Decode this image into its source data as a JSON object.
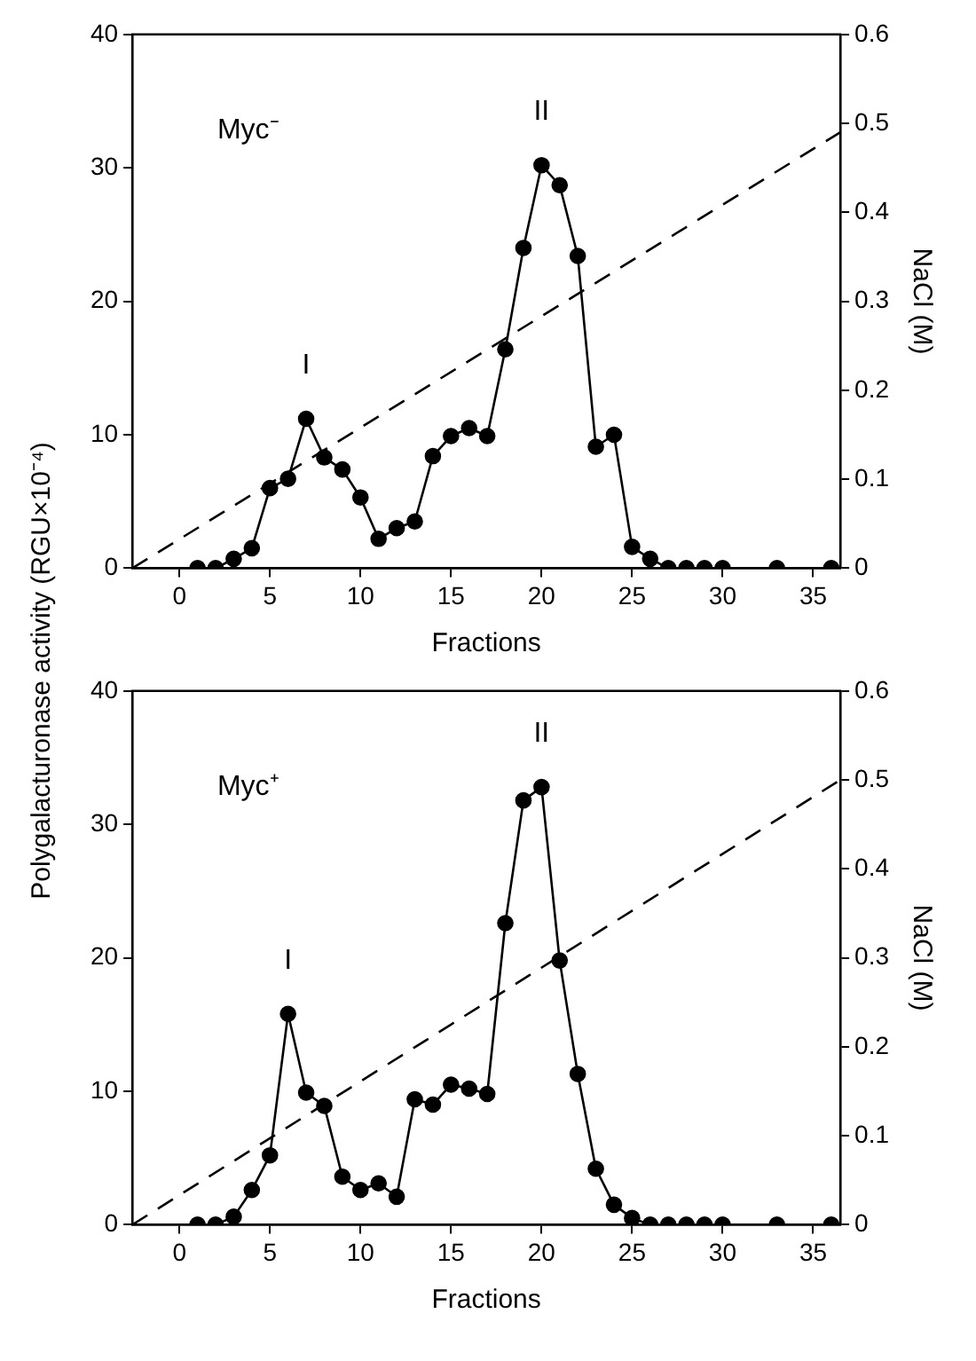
{
  "chart_data": [
    {
      "type": "line",
      "xlabel": "Fractions",
      "ylabel": "Polygalacturonase activity (RGU×10⁻⁴)",
      "y2label": "NaCl (M)",
      "xlim": [
        -2.6,
        36.5
      ],
      "xticks": [
        0,
        5,
        10,
        15,
        20,
        25,
        30,
        35
      ],
      "ylim": [
        0,
        40
      ],
      "yticks": [
        0,
        10,
        20,
        30,
        40
      ],
      "y2lim": [
        0,
        0.6
      ],
      "y2ticks": [
        0,
        0.1,
        0.2,
        0.3,
        0.4,
        0.5,
        0.6
      ],
      "grid": false,
      "legend": false,
      "annotations": [
        "Myc⁻",
        {
          "text": "I",
          "x": 7,
          "y": 11.2
        },
        {
          "text": "II",
          "x": 20,
          "y": 30.2
        }
      ],
      "series": [
        {
          "color": "#000000",
          "marker": "circle",
          "line_style": "solid",
          "x": [
            1,
            2,
            3,
            4,
            5,
            6,
            7,
            8,
            9,
            10,
            11,
            12,
            13,
            14,
            15,
            16,
            17,
            18,
            19,
            20,
            21,
            22,
            23,
            24,
            25,
            26,
            27,
            28,
            29,
            30,
            33,
            36
          ],
          "values": [
            0,
            0,
            0.7,
            1.5,
            6,
            6.7,
            11.2,
            8.3,
            7.4,
            5.3,
            2.2,
            3,
            3.5,
            8.4,
            9.9,
            10.5,
            9.9,
            16.4,
            24,
            30.2,
            28.7,
            23.4,
            9.1,
            10,
            1.6,
            0.7,
            0,
            0,
            0,
            0,
            0,
            0
          ]
        },
        {
          "color": "#000000",
          "marker": "none",
          "line_style": "dashed",
          "axis": "y2",
          "x": [
            -2.6,
            36.5
          ],
          "values": [
            0,
            0.49
          ]
        }
      ]
    },
    {
      "type": "line",
      "xlabel": "Fractions",
      "y2label": "NaCl (M)",
      "xlim": [
        -2.6,
        36.5
      ],
      "xticks": [
        0,
        5,
        10,
        15,
        20,
        25,
        30,
        35
      ],
      "ylim": [
        0,
        40
      ],
      "yticks": [
        0,
        10,
        20,
        30,
        40
      ],
      "y2lim": [
        0,
        0.6
      ],
      "y2ticks": [
        0,
        0.1,
        0.2,
        0.3,
        0.4,
        0.5,
        0.6
      ],
      "grid": false,
      "legend": false,
      "annotations": [
        "Myc⁺",
        {
          "text": "I",
          "x": 6,
          "y": 15.8
        },
        {
          "text": "II",
          "x": 20,
          "y": 32.8
        }
      ],
      "series": [
        {
          "color": "#000000",
          "marker": "circle",
          "line_style": "solid",
          "x": [
            1,
            2,
            3,
            4,
            5,
            6,
            7,
            8,
            9,
            10,
            11,
            12,
            13,
            14,
            15,
            16,
            17,
            18,
            19,
            20,
            21,
            22,
            23,
            24,
            25,
            26,
            27,
            28,
            29,
            30,
            33,
            36
          ],
          "values": [
            0,
            0,
            0.6,
            2.6,
            5.2,
            15.8,
            9.9,
            8.9,
            3.6,
            2.6,
            3.1,
            2.1,
            9.4,
            9,
            10.5,
            10.2,
            9.8,
            22.6,
            31.8,
            32.8,
            19.8,
            11.3,
            4.2,
            1.5,
            0.5,
            0,
            0,
            0,
            0,
            0,
            0,
            0
          ]
        },
        {
          "color": "#000000",
          "marker": "none",
          "line_style": "dashed",
          "axis": "y2",
          "x": [
            -2.6,
            36.5
          ],
          "values": [
            0,
            0.5
          ]
        }
      ]
    }
  ]
}
